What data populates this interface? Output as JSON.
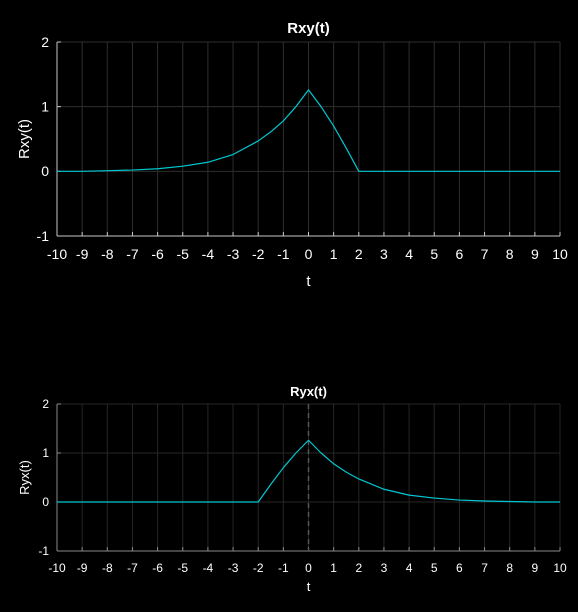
{
  "figure": {
    "background": "#000000"
  },
  "chart_data": [
    {
      "type": "line",
      "title": "Rxy(t)",
      "xlabel": "t",
      "ylabel": "Rxy(t)",
      "xlim": [
        -10,
        10
      ],
      "ylim": [
        -1,
        2
      ],
      "xticks": [
        -10,
        -9,
        -8,
        -7,
        -6,
        -5,
        -4,
        -3,
        -2,
        -1,
        0,
        1,
        2,
        3,
        4,
        5,
        6,
        7,
        8,
        9,
        10
      ],
      "yticks": [
        -1,
        0,
        1,
        2
      ],
      "grid": true,
      "line_color": "#00c8d2",
      "series": [
        {
          "x": [
            -10,
            -9,
            -8,
            -7,
            -6,
            -5,
            -4,
            -3,
            -2,
            -1.5,
            -1,
            -0.5,
            0,
            0.5,
            1,
            1.5,
            2,
            3,
            4,
            5,
            6,
            7,
            8,
            9,
            10
          ],
          "y": [
            0.0,
            0.0,
            0.01,
            0.02,
            0.04,
            0.08,
            0.14,
            0.26,
            0.47,
            0.61,
            0.78,
            1.0,
            1.26,
            1.0,
            0.7,
            0.36,
            0.0,
            0,
            0,
            0,
            0,
            0,
            0,
            0,
            0
          ]
        }
      ]
    },
    {
      "type": "line",
      "title": "Ryx(t)",
      "xlabel": "t",
      "ylabel": "Ryx(t)",
      "xlim": [
        -10,
        10
      ],
      "ylim": [
        -1,
        2
      ],
      "xticks": [
        -10,
        -9,
        -8,
        -7,
        -6,
        -5,
        -4,
        -3,
        -2,
        -1,
        0,
        1,
        2,
        3,
        4,
        5,
        6,
        7,
        8,
        9,
        10
      ],
      "yticks": [
        -1,
        0,
        1,
        2
      ],
      "grid": true,
      "dashed_vline_x": 0,
      "line_color": "#00c8d2",
      "series": [
        {
          "x": [
            -10,
            -9,
            -8,
            -7,
            -6,
            -5,
            -4,
            -3,
            -2,
            -1.5,
            -1,
            -0.5,
            0,
            0.5,
            1,
            1.5,
            2,
            3,
            4,
            5,
            6,
            7,
            8,
            9,
            10
          ],
          "y": [
            0,
            0,
            0,
            0,
            0,
            0,
            0,
            0,
            0.0,
            0.36,
            0.7,
            1.0,
            1.26,
            1.0,
            0.78,
            0.61,
            0.47,
            0.26,
            0.14,
            0.08,
            0.04,
            0.02,
            0.01,
            0.0,
            0.0
          ]
        }
      ]
    }
  ]
}
